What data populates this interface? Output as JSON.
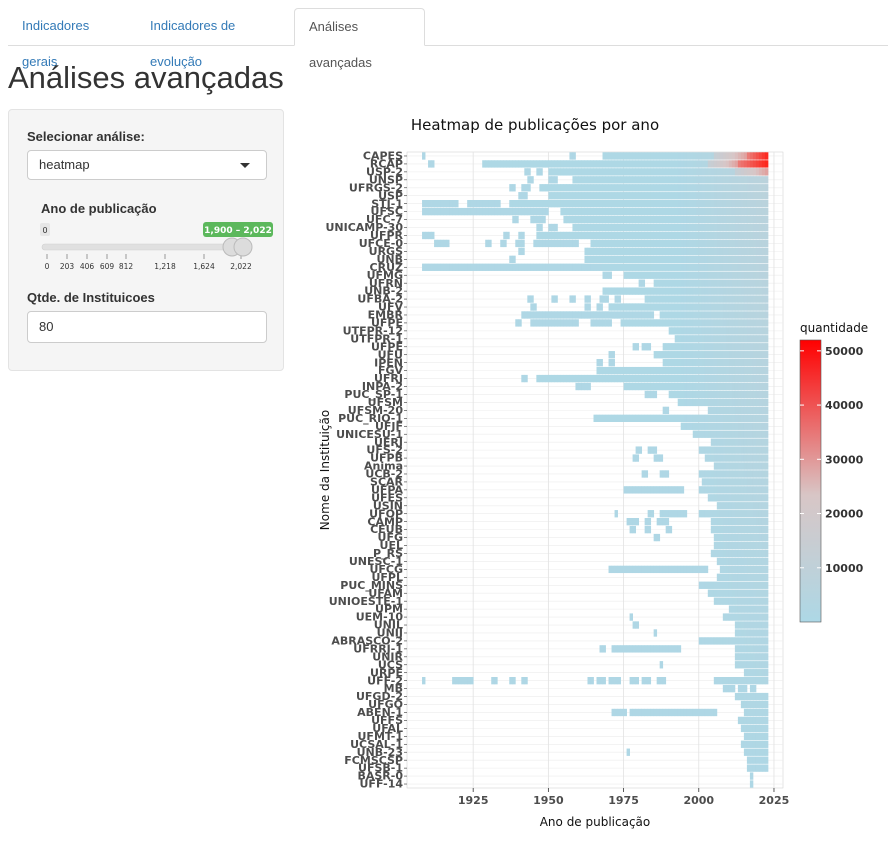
{
  "tabs": [
    {
      "label": "Indicadores gerais",
      "active": false
    },
    {
      "label": "Indicadores de evolução",
      "active": false
    },
    {
      "label": "Análises avançadas",
      "active": true
    }
  ],
  "page_title": "Análises avançadas",
  "sidebar": {
    "analysis_label": "Selecionar análise:",
    "analysis_value": "heatmap",
    "year_label": "Ano de publicação",
    "year_slider": {
      "min_label": "0",
      "range_label": "1,900 – 2,022",
      "value_from": 1900,
      "value_to": 2022,
      "ticks": [
        "0",
        "203",
        "406",
        "609",
        "812",
        "1,218",
        "1,624",
        "2,022"
      ]
    },
    "institutions_label": "Qtde. de Instituicoes",
    "institutions_value": "80"
  },
  "chart_data": {
    "type": "heatmap",
    "title": "Heatmap de publicações por ano",
    "xlabel": "Ano de publicação",
    "ylabel": "Nome da Instituição",
    "xlim": [
      1903,
      2028
    ],
    "x_ticks": [
      "1925",
      "1950",
      "1975",
      "2000",
      "2025"
    ],
    "legend": {
      "title": "quantidade",
      "ticks": [
        "10000",
        "20000",
        "30000",
        "40000",
        "50000"
      ],
      "range": [
        0,
        52000
      ],
      "low_color": "#add8e6",
      "mid_color": "#d8c6c6",
      "high_color": "#ff0000",
      "position": "right"
    },
    "institutions": [
      "CAPES",
      "RCAP",
      "USP-2",
      "UNSP",
      "UFRGS-2",
      "USP",
      "STJ-1",
      "UFSC",
      "UFC-7",
      "UNICAMP-30",
      "UFPR",
      "UFCE-0",
      "URGS",
      "UNB",
      "CRUZ",
      "UFMG",
      "UFRN",
      "UNB-2",
      "UFBA-2",
      "UFV",
      "EMBR",
      "UFPE",
      "UTFPR-12",
      "UTFPR-1",
      "UFPE",
      "UFU",
      "IPEN",
      "FGV",
      "UFRJ",
      "INPA-2",
      "PUC_SP-1",
      "UFSM",
      "UFSM-20",
      "PUC_RIO-1",
      "UFJF",
      "UNICESU-1",
      "UERJ",
      "UFS-2",
      "UFPB",
      "Anima",
      "UCB-2",
      "SCAR",
      "UFPA",
      "UFES",
      "USIN",
      "UFOP",
      "CAMP",
      "CEUB",
      "UFG",
      "UEL",
      "P_RS",
      "UNESC-1",
      "UFCG",
      "UFPL",
      "PUC_MINS",
      "UFAM",
      "UNIOESTE-1",
      "UPM",
      "UEM-10",
      "UNIL",
      "UNIJ",
      "ABRASCO-2",
      "UFRRJ-1",
      "UNIR",
      "UCS",
      "URPE",
      "UFF-2",
      "MB",
      "UFGD-2",
      "UFGO",
      "ABEN-1",
      "UFFS",
      "UFAL",
      "UFMT-1",
      "UCSAL-1",
      "UNB-23",
      "FCMSCSP",
      "UFSB-1",
      "BASR-0",
      "UFF-14"
    ],
    "rows": [
      {
        "segs": [
          [
            1908,
            1909,
            "l"
          ],
          [
            1957,
            1959,
            "l"
          ],
          [
            1968,
            2005,
            "lv"
          ],
          [
            2005,
            2016,
            "m"
          ],
          [
            2016,
            2023,
            "h"
          ]
        ]
      },
      {
        "segs": [
          [
            1910,
            1912,
            "l"
          ],
          [
            1928,
            2003,
            "lv"
          ],
          [
            2003,
            2013,
            "m"
          ],
          [
            2013,
            2023,
            "h"
          ]
        ]
      },
      {
        "segs": [
          [
            1942,
            1944,
            "l"
          ],
          [
            1946,
            1948,
            "l"
          ],
          [
            1950,
            2023,
            "lv"
          ],
          [
            2012,
            2023,
            "m"
          ]
        ]
      },
      {
        "segs": [
          [
            1943,
            1945,
            "l"
          ],
          [
            1950,
            1953,
            "l"
          ],
          [
            1958,
            2023,
            "lv"
          ]
        ]
      },
      {
        "segs": [
          [
            1937,
            1939,
            "l"
          ],
          [
            1941,
            1944,
            "l"
          ],
          [
            1947,
            2023,
            "lv"
          ]
        ]
      },
      {
        "segs": [
          [
            1940,
            1943,
            "l"
          ],
          [
            1950,
            2023,
            "lv"
          ]
        ]
      },
      {
        "segs": [
          [
            1908,
            1920,
            "l"
          ],
          [
            1923,
            1934,
            "l"
          ],
          [
            1937,
            2023,
            "lv"
          ]
        ]
      },
      {
        "segs": [
          [
            1908,
            1950,
            "l"
          ],
          [
            1954,
            2023,
            "lv"
          ]
        ]
      },
      {
        "segs": [
          [
            1938,
            1940,
            "l"
          ],
          [
            1944,
            1949,
            "l"
          ],
          [
            1955,
            2023,
            "lv"
          ]
        ]
      },
      {
        "segs": [
          [
            1946,
            1948,
            "l"
          ],
          [
            1950,
            1953,
            "l"
          ],
          [
            1958,
            2023,
            "lv"
          ]
        ]
      },
      {
        "segs": [
          [
            1908,
            1912,
            "l"
          ],
          [
            1935,
            1937,
            "l"
          ],
          [
            1940,
            1942,
            "l"
          ],
          [
            1946,
            2023,
            "lv"
          ]
        ]
      },
      {
        "segs": [
          [
            1912,
            1917,
            "l"
          ],
          [
            1929,
            1931,
            "l"
          ],
          [
            1934,
            1936,
            "l"
          ],
          [
            1939,
            1942,
            "l"
          ],
          [
            1945,
            1960,
            "l"
          ],
          [
            1964,
            2023,
            "lv"
          ]
        ]
      },
      {
        "segs": [
          [
            1940,
            1942,
            "l"
          ],
          [
            1962,
            2023,
            "lv"
          ]
        ]
      },
      {
        "segs": [
          [
            1937,
            1939,
            "l"
          ],
          [
            1962,
            2023,
            "lv"
          ]
        ]
      },
      {
        "segs": [
          [
            1908,
            1968,
            "l"
          ],
          [
            1968,
            2023,
            "lv"
          ]
        ]
      },
      {
        "segs": [
          [
            1968,
            1971,
            "l"
          ],
          [
            1975,
            2023,
            "lv"
          ]
        ]
      },
      {
        "segs": [
          [
            1980,
            1982,
            "l"
          ],
          [
            1985,
            2023,
            "lv"
          ]
        ]
      },
      {
        "segs": [
          [
            1968,
            2023,
            "lv"
          ]
        ]
      },
      {
        "segs": [
          [
            1943,
            1945,
            "l"
          ],
          [
            1951,
            1953,
            "l"
          ],
          [
            1957,
            1959,
            "l"
          ],
          [
            1962,
            1964,
            "l"
          ],
          [
            1967,
            1970,
            "l"
          ],
          [
            1972,
            1974,
            "l"
          ],
          [
            1982,
            2023,
            "lv"
          ]
        ]
      },
      {
        "segs": [
          [
            1944,
            1946,
            "l"
          ],
          [
            1962,
            1964,
            "l"
          ],
          [
            1966,
            1968,
            "l"
          ],
          [
            1970,
            2023,
            "lv"
          ]
        ]
      },
      {
        "segs": [
          [
            1941,
            1985,
            "l"
          ],
          [
            1987,
            2023,
            "lv"
          ]
        ]
      },
      {
        "segs": [
          [
            1939,
            1941,
            "l"
          ],
          [
            1944,
            1960,
            "l"
          ],
          [
            1964,
            1971,
            "l"
          ],
          [
            1974,
            2023,
            "lv"
          ]
        ]
      },
      {
        "segs": [
          [
            1990,
            2023,
            "lv"
          ]
        ]
      },
      {
        "segs": [
          [
            1992,
            2023,
            "lv"
          ]
        ]
      },
      {
        "segs": [
          [
            1978,
            1980,
            "l"
          ],
          [
            1981,
            1984,
            "l"
          ],
          [
            1988,
            2023,
            "lv"
          ]
        ]
      },
      {
        "segs": [
          [
            1970,
            1972,
            "l"
          ],
          [
            1985,
            2023,
            "lv"
          ]
        ]
      },
      {
        "segs": [
          [
            1966,
            1968,
            "l"
          ],
          [
            1970,
            1972,
            "l"
          ],
          [
            1988,
            2023,
            "lv"
          ]
        ]
      },
      {
        "segs": [
          [
            1966,
            2023,
            "lv"
          ]
        ]
      },
      {
        "segs": [
          [
            1941,
            1943,
            "l"
          ],
          [
            1946,
            2023,
            "lv"
          ]
        ]
      },
      {
        "segs": [
          [
            1959,
            1964,
            "l"
          ],
          [
            1975,
            2023,
            "lv"
          ]
        ]
      },
      {
        "segs": [
          [
            1982,
            1986,
            "l"
          ],
          [
            1990,
            2023,
            "lv"
          ]
        ]
      },
      {
        "segs": [
          [
            1993,
            2023,
            "lv"
          ]
        ]
      },
      {
        "segs": [
          [
            1988,
            1990,
            "l"
          ],
          [
            2003,
            2023,
            "lv"
          ]
        ]
      },
      {
        "segs": [
          [
            1965,
            2023,
            "lv"
          ]
        ]
      },
      {
        "segs": [
          [
            1994,
            2023,
            "lv"
          ]
        ]
      },
      {
        "segs": [
          [
            1998,
            2023,
            "lv"
          ]
        ]
      },
      {
        "segs": [
          [
            2004,
            2023,
            "lv"
          ]
        ]
      },
      {
        "segs": [
          [
            1979,
            1981,
            "l"
          ],
          [
            1983,
            1986,
            "l"
          ],
          [
            2000,
            2023,
            "lv"
          ]
        ]
      },
      {
        "segs": [
          [
            1978,
            1980,
            "l"
          ],
          [
            1985,
            1988,
            "l"
          ],
          [
            2002,
            2023,
            "lv"
          ]
        ]
      },
      {
        "segs": [
          [
            2005,
            2023,
            "lv"
          ]
        ]
      },
      {
        "segs": [
          [
            1981,
            1983,
            "l"
          ],
          [
            1987,
            1990,
            "l"
          ],
          [
            2000,
            2023,
            "lv"
          ]
        ]
      },
      {
        "segs": [
          [
            2001,
            2023,
            "lv"
          ]
        ]
      },
      {
        "segs": [
          [
            1975,
            1995,
            "l"
          ],
          [
            2000,
            2023,
            "lv"
          ]
        ]
      },
      {
        "segs": [
          [
            2003,
            2023,
            "lv"
          ]
        ]
      },
      {
        "segs": [
          [
            2006,
            2023,
            "lv"
          ]
        ]
      },
      {
        "segs": [
          [
            1972,
            1973,
            "l"
          ],
          [
            1983,
            1985,
            "l"
          ],
          [
            1987,
            1996,
            "l"
          ],
          [
            2000,
            2023,
            "lv"
          ]
        ]
      },
      {
        "segs": [
          [
            1976,
            1980,
            "l"
          ],
          [
            1982,
            1984,
            "l"
          ],
          [
            1986,
            1990,
            "l"
          ],
          [
            2004,
            2023,
            "lv"
          ]
        ]
      },
      {
        "segs": [
          [
            1977,
            1979,
            "l"
          ],
          [
            1982,
            1984,
            "l"
          ],
          [
            1989,
            1991,
            "l"
          ],
          [
            2004,
            2023,
            "lv"
          ]
        ]
      },
      {
        "segs": [
          [
            1985,
            1987,
            "l"
          ],
          [
            2005,
            2023,
            "lv"
          ]
        ]
      },
      {
        "segs": [
          [
            2005,
            2023,
            "lv"
          ]
        ]
      },
      {
        "segs": [
          [
            2004,
            2023,
            "lv"
          ]
        ]
      },
      {
        "segs": [
          [
            2006,
            2023,
            "lv"
          ]
        ]
      },
      {
        "segs": [
          [
            1970,
            2003,
            "l"
          ],
          [
            2007,
            2023,
            "lv"
          ]
        ]
      },
      {
        "segs": [
          [
            2006,
            2023,
            "lv"
          ]
        ]
      },
      {
        "segs": [
          [
            2000,
            2023,
            "lv"
          ]
        ]
      },
      {
        "segs": [
          [
            2003,
            2023,
            "lv"
          ]
        ]
      },
      {
        "segs": [
          [
            2005,
            2023,
            "lv"
          ]
        ]
      },
      {
        "segs": [
          [
            2010,
            2023,
            "lv"
          ]
        ]
      },
      {
        "segs": [
          [
            1977,
            1978,
            "l"
          ],
          [
            2008,
            2023,
            "lv"
          ]
        ]
      },
      {
        "segs": [
          [
            1978,
            1980,
            "l"
          ],
          [
            2012,
            2023,
            "lv"
          ]
        ]
      },
      {
        "segs": [
          [
            1985,
            1986,
            "l"
          ],
          [
            2012,
            2023,
            "lv"
          ]
        ]
      },
      {
        "segs": [
          [
            2000,
            2023,
            "lv"
          ]
        ]
      },
      {
        "segs": [
          [
            1967,
            1969,
            "l"
          ],
          [
            1971,
            1994,
            "l"
          ],
          [
            2012,
            2023,
            "lv"
          ]
        ]
      },
      {
        "segs": [
          [
            2012,
            2023,
            "lv"
          ]
        ]
      },
      {
        "segs": [
          [
            1987,
            1988,
            "l"
          ],
          [
            2012,
            2023,
            "lv"
          ]
        ]
      },
      {
        "segs": [
          [
            2015,
            2023,
            "lv"
          ]
        ]
      },
      {
        "segs": [
          [
            1908,
            1909,
            "l"
          ],
          [
            1918,
            1925,
            "l"
          ],
          [
            1931,
            1933,
            "l"
          ],
          [
            1937,
            1939,
            "l"
          ],
          [
            1941,
            1943,
            "l"
          ],
          [
            1963,
            1965,
            "l"
          ],
          [
            1966,
            1969,
            "l"
          ],
          [
            1970,
            1974,
            "l"
          ],
          [
            1977,
            1980,
            "l"
          ],
          [
            1981,
            1984,
            "l"
          ],
          [
            1986,
            1989,
            "l"
          ],
          [
            2005,
            2023,
            "lv"
          ]
        ]
      },
      {
        "segs": [
          [
            2008,
            2012,
            "l"
          ],
          [
            2013,
            2016,
            "l"
          ],
          [
            2017,
            2019,
            "l"
          ]
        ]
      },
      {
        "segs": [
          [
            2012,
            2023,
            "lv"
          ]
        ]
      },
      {
        "segs": [
          [
            2014,
            2023,
            "lv"
          ]
        ]
      },
      {
        "segs": [
          [
            1971,
            1976,
            "l"
          ],
          [
            1977,
            2006,
            "l"
          ],
          [
            2015,
            2023,
            "lv"
          ]
        ]
      },
      {
        "segs": [
          [
            2013,
            2023,
            "lv"
          ]
        ]
      },
      {
        "segs": [
          [
            2014,
            2023,
            "lv"
          ]
        ]
      },
      {
        "segs": [
          [
            2015,
            2023,
            "lv"
          ]
        ]
      },
      {
        "segs": [
          [
            2014,
            2023,
            "lv"
          ]
        ]
      },
      {
        "segs": [
          [
            1976,
            1977,
            "l"
          ],
          [
            2015,
            2023,
            "lv"
          ]
        ]
      },
      {
        "segs": [
          [
            2016,
            2023,
            "lv"
          ]
        ]
      },
      {
        "segs": [
          [
            2016,
            2023,
            "lv"
          ]
        ]
      },
      {
        "segs": [
          [
            2017,
            2018,
            "lv"
          ]
        ]
      },
      {
        "segs": [
          [
            2017,
            2018,
            "lv"
          ]
        ]
      }
    ]
  }
}
